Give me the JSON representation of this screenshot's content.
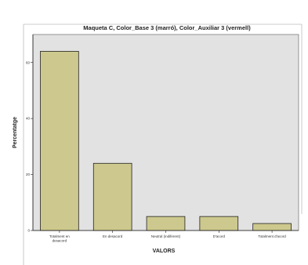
{
  "chart_data": {
    "type": "bar",
    "title": "Maqueta C, Color_Base 3 (marró), Color_Auxiliar 3 (vermell)",
    "xlabel": "VALORS",
    "ylabel": "Percentatge",
    "categories": [
      [
        "Totalment en",
        "desacord"
      ],
      [
        "En desacord"
      ],
      [
        "Neutral (indiferent)"
      ],
      [
        "D'acord"
      ],
      [
        "Totalment d'acord"
      ]
    ],
    "values": [
      64,
      24,
      5,
      5,
      2.5
    ],
    "ylim": [
      0,
      70
    ],
    "yticks": [
      0,
      20,
      40,
      60
    ],
    "grid": false,
    "legend": "none",
    "colors": {
      "plot_background": "#e2e2e2",
      "bar_fill": "#cdc98e",
      "bar_stroke": "#222222",
      "axis": "#222222"
    }
  }
}
